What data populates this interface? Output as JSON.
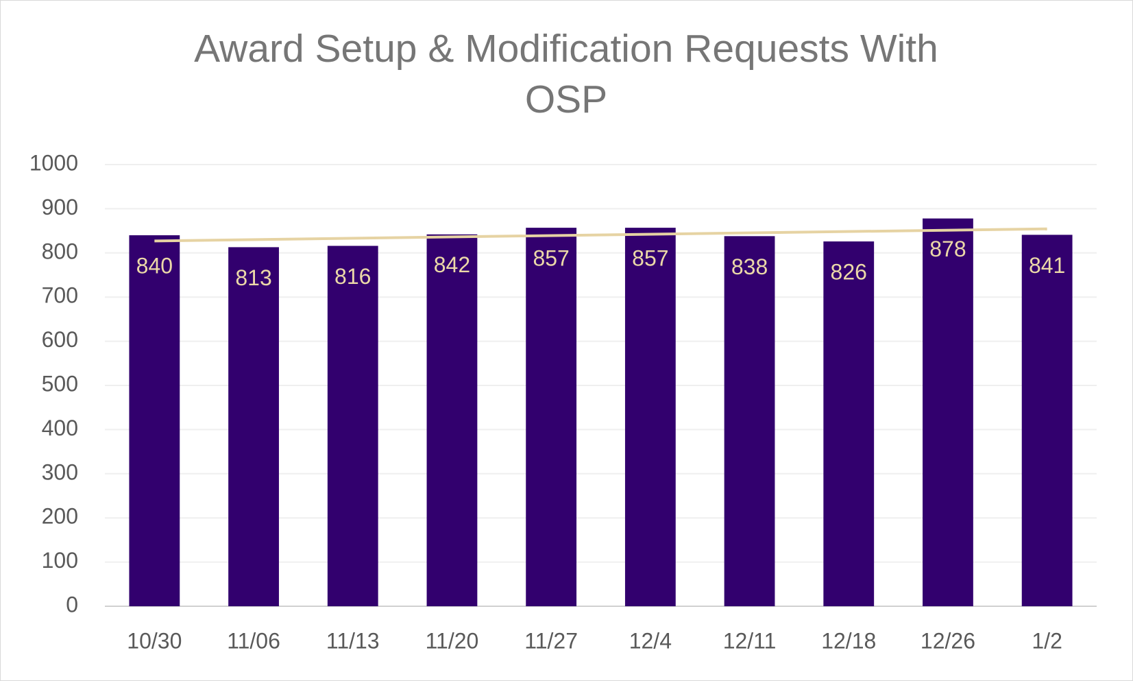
{
  "chart_data": {
    "type": "bar",
    "title": "Award Setup & Modification Requests With OSP",
    "categories": [
      "10/30",
      "11/06",
      "11/13",
      "11/20",
      "11/27",
      "12/4",
      "12/11",
      "12/18",
      "12/26",
      "1/2"
    ],
    "values": [
      840,
      813,
      816,
      842,
      857,
      857,
      838,
      826,
      878,
      841
    ],
    "color": "#32006e",
    "label_color": "#ecd9a8",
    "trendline": "linear",
    "trendline_color": "#e6d3a3",
    "ylim": [
      0,
      1000
    ],
    "yticks": [
      0,
      100,
      200,
      300,
      400,
      500,
      600,
      700,
      800,
      900,
      1000
    ],
    "grid": true
  }
}
